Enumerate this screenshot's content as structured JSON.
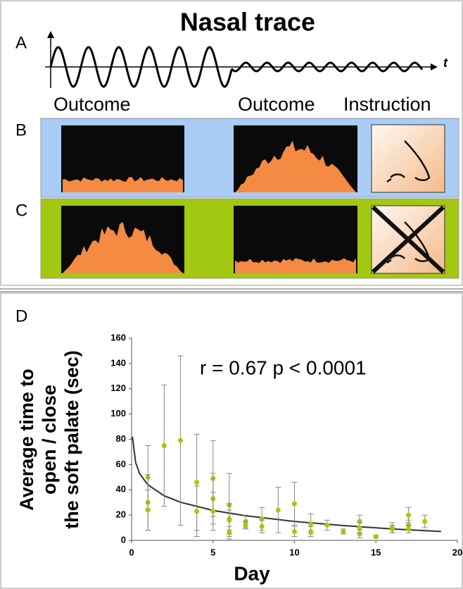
{
  "figure": {
    "title": "Nasal trace",
    "panel_labels": [
      "A",
      "B",
      "C",
      "D"
    ],
    "axis_symbol": "t",
    "column_headers": [
      "Outcome",
      "Outcome",
      "Instruction"
    ]
  },
  "chart_data": {
    "type": "scatter",
    "annotation": "r = 0.67  p < 0.0001",
    "xlabel": "Day",
    "ylabel": [
      "Average time to",
      "open / close",
      "the soft palate (sec)"
    ],
    "xlim": [
      0,
      20
    ],
    "xticks": [
      0,
      5,
      10,
      15,
      20
    ],
    "ylim": [
      0,
      160
    ],
    "yticks": [
      0,
      20,
      40,
      60,
      80,
      100,
      120,
      140,
      160
    ],
    "color": "#a8c800",
    "error_color": "#888888",
    "fit_color": "#333333",
    "x": [
      1,
      1,
      1,
      2,
      3,
      4,
      4,
      5,
      5,
      5,
      6,
      6,
      6,
      6,
      7,
      7,
      8,
      8,
      9,
      10,
      10,
      11,
      11,
      12,
      13,
      14,
      14,
      14,
      15,
      16,
      16,
      17,
      17,
      17,
      18
    ],
    "values": [
      50,
      30,
      24,
      75,
      79,
      46,
      23,
      49,
      33,
      23,
      28,
      17,
      6,
      16,
      15,
      12,
      17,
      11,
      24,
      29,
      7,
      13,
      7,
      12,
      7,
      15,
      5,
      10,
      3,
      9,
      10,
      20,
      12,
      9,
      15
    ],
    "errors": [
      25,
      22,
      16,
      48,
      67,
      38,
      20,
      30,
      20,
      15,
      25,
      12,
      5,
      8,
      5,
      3,
      9,
      5,
      18,
      17,
      4,
      8,
      4,
      4,
      2,
      5,
      3,
      4,
      1,
      3,
      4,
      6,
      4,
      3,
      5
    ],
    "fit": {
      "x": [
        0.05,
        0.25,
        0.5,
        1,
        2,
        3,
        5,
        7,
        10,
        13,
        16,
        19
      ],
      "values": [
        82,
        61.5,
        52.7,
        44,
        35.3,
        30.2,
        23.7,
        19.5,
        15,
        11.7,
        9.1,
        7
      ]
    }
  }
}
